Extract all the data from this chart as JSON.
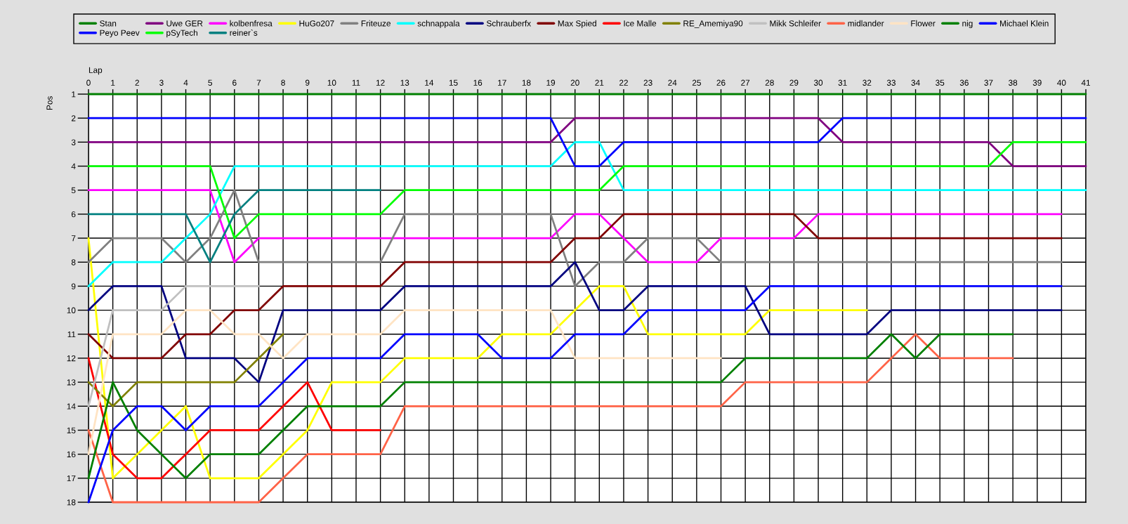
{
  "chart_data": {
    "type": "line",
    "xlabel": "Lap",
    "ylabel": "Pos",
    "grid": true,
    "legend": "top",
    "x": [
      0,
      1,
      2,
      3,
      4,
      5,
      6,
      7,
      8,
      9,
      10,
      11,
      12,
      13,
      14,
      15,
      16,
      17,
      18,
      19,
      20,
      21,
      22,
      23,
      24,
      25,
      26,
      27,
      28,
      29,
      30,
      31,
      32,
      33,
      34,
      35,
      36,
      37,
      38,
      39,
      40,
      41
    ],
    "xlim": [
      0,
      41
    ],
    "xticks": [
      0,
      1,
      2,
      3,
      4,
      5,
      6,
      7,
      8,
      9,
      10,
      11,
      12,
      13,
      14,
      15,
      16,
      17,
      18,
      19,
      20,
      21,
      22,
      23,
      24,
      25,
      26,
      27,
      28,
      29,
      30,
      31,
      32,
      33,
      34,
      35,
      36,
      37,
      38,
      39,
      40,
      41
    ],
    "ylim": [
      18,
      1
    ],
    "yticks": [
      1,
      2,
      3,
      4,
      5,
      6,
      7,
      8,
      9,
      10,
      11,
      12,
      13,
      14,
      15,
      16,
      17,
      18
    ],
    "series": [
      {
        "name": "Stan",
        "color": "#008000",
        "values": [
          1,
          1,
          1,
          1,
          1,
          1,
          1,
          1,
          1,
          1,
          1,
          1,
          1,
          1,
          1,
          1,
          1,
          1,
          1,
          1,
          1,
          1,
          1,
          1,
          1,
          1,
          1,
          1,
          1,
          1,
          1,
          1,
          1,
          1,
          1,
          1,
          1,
          1,
          1,
          1,
          1,
          1
        ]
      },
      {
        "name": "Uwe GER",
        "color": "#800080",
        "values": [
          3,
          3,
          3,
          3,
          3,
          3,
          3,
          3,
          3,
          3,
          3,
          3,
          3,
          3,
          3,
          3,
          3,
          3,
          3,
          3,
          2,
          2,
          2,
          2,
          2,
          2,
          2,
          2,
          2,
          2,
          2,
          3,
          3,
          3,
          3,
          3,
          3,
          3,
          4,
          4,
          4,
          4
        ]
      },
      {
        "name": "kolbenfresa",
        "color": "#ff00ff",
        "values": [
          5,
          5,
          5,
          5,
          5,
          5,
          8,
          7,
          7,
          7,
          7,
          7,
          7,
          7,
          7,
          7,
          7,
          7,
          7,
          7,
          6,
          6,
          7,
          8,
          8,
          8,
          7,
          7,
          7,
          7,
          6,
          6,
          6,
          6,
          6,
          6,
          6,
          6,
          6,
          6,
          6,
          null
        ]
      },
      {
        "name": "HuGo207",
        "color": "#ffff00",
        "values": [
          7,
          17,
          16,
          15,
          14,
          17,
          17,
          17,
          16,
          15,
          13,
          13,
          13,
          12,
          12,
          12,
          12,
          11,
          11,
          11,
          10,
          9,
          9,
          11,
          11,
          11,
          11,
          11,
          10,
          10,
          10,
          10,
          10,
          null,
          null,
          null,
          null,
          null,
          null,
          null,
          null,
          null
        ]
      },
      {
        "name": "Friteuze",
        "color": "#808080",
        "values": [
          8,
          7,
          7,
          7,
          8,
          7,
          5,
          8,
          8,
          8,
          8,
          8,
          8,
          6,
          6,
          6,
          6,
          6,
          6,
          6,
          9,
          8,
          8,
          7,
          7,
          7,
          8,
          8,
          8,
          8,
          8,
          8,
          8,
          8,
          8,
          8,
          8,
          8,
          8,
          8,
          8,
          null
        ]
      },
      {
        "name": "schnappala",
        "color": "#00ffff",
        "values": [
          9,
          8,
          8,
          8,
          7,
          6,
          4,
          4,
          4,
          4,
          4,
          4,
          4,
          4,
          4,
          4,
          4,
          4,
          4,
          4,
          3,
          3,
          5,
          5,
          5,
          5,
          5,
          5,
          5,
          5,
          5,
          5,
          5,
          5,
          5,
          5,
          5,
          5,
          5,
          5,
          5,
          5
        ]
      },
      {
        "name": "Schrauberfx",
        "color": "#000080",
        "values": [
          10,
          9,
          9,
          9,
          12,
          12,
          12,
          13,
          10,
          10,
          10,
          10,
          10,
          9,
          9,
          9,
          9,
          9,
          9,
          9,
          8,
          10,
          10,
          9,
          9,
          9,
          9,
          9,
          11,
          11,
          11,
          11,
          11,
          10,
          10,
          10,
          10,
          10,
          10,
          10,
          10,
          null
        ]
      },
      {
        "name": "Max Spied",
        "color": "#800000",
        "values": [
          11,
          12,
          12,
          12,
          11,
          11,
          10,
          10,
          9,
          9,
          9,
          9,
          9,
          8,
          8,
          8,
          8,
          8,
          8,
          8,
          7,
          7,
          6,
          6,
          6,
          6,
          6,
          6,
          6,
          6,
          7,
          7,
          7,
          7,
          7,
          7,
          7,
          7,
          7,
          7,
          7,
          null
        ]
      },
      {
        "name": "Ice Malle",
        "color": "#ff0000",
        "values": [
          12,
          16,
          17,
          17,
          16,
          15,
          15,
          15,
          14,
          13,
          15,
          15,
          15,
          null,
          null,
          null,
          null,
          null,
          null,
          null,
          null,
          null,
          null,
          null,
          null,
          null,
          null,
          null,
          null,
          null,
          null,
          null,
          null,
          null,
          null,
          null,
          null,
          null,
          null,
          null,
          null,
          null
        ]
      },
      {
        "name": "RE_Amemiya90",
        "color": "#808000",
        "values": [
          13,
          14,
          13,
          13,
          13,
          13,
          13,
          12,
          11,
          null,
          null,
          null,
          null,
          null,
          null,
          null,
          null,
          null,
          null,
          null,
          null,
          null,
          null,
          null,
          null,
          null,
          null,
          null,
          null,
          null,
          null,
          null,
          null,
          null,
          null,
          null,
          null,
          null,
          null,
          null,
          null,
          null
        ]
      },
      {
        "name": "Mikk Schleifer",
        "color": "#c0c0c0",
        "values": [
          14,
          10,
          10,
          10,
          9,
          9,
          9,
          9,
          null,
          null,
          null,
          null,
          null,
          null,
          null,
          null,
          null,
          null,
          null,
          null,
          null,
          null,
          null,
          null,
          null,
          null,
          null,
          null,
          null,
          null,
          null,
          null,
          null,
          null,
          null,
          null,
          null,
          null,
          null,
          null,
          null,
          null
        ]
      },
      {
        "name": "midlander",
        "color": "#ff6347",
        "values": [
          15,
          18,
          18,
          18,
          18,
          18,
          18,
          18,
          17,
          16,
          16,
          16,
          16,
          14,
          14,
          14,
          14,
          14,
          14,
          14,
          14,
          14,
          14,
          14,
          14,
          14,
          14,
          13,
          13,
          13,
          13,
          13,
          13,
          12,
          11,
          12,
          12,
          12,
          12,
          null,
          null,
          null
        ]
      },
      {
        "name": "Flower",
        "color": "#ffe4c4",
        "values": [
          16,
          11,
          11,
          11,
          10,
          10,
          11,
          11,
          12,
          11,
          11,
          11,
          11,
          10,
          10,
          10,
          10,
          10,
          10,
          10,
          12,
          12,
          12,
          12,
          12,
          12,
          12,
          null,
          null,
          null,
          null,
          null,
          null,
          null,
          null,
          null,
          null,
          null,
          null,
          null,
          null,
          null
        ]
      },
      {
        "name": "nig",
        "color": "#008000",
        "values": [
          17,
          13,
          15,
          16,
          17,
          16,
          16,
          16,
          15,
          14,
          14,
          14,
          14,
          13,
          13,
          13,
          13,
          13,
          13,
          13,
          13,
          13,
          13,
          13,
          13,
          13,
          13,
          12,
          12,
          12,
          12,
          12,
          12,
          11,
          12,
          11,
          11,
          11,
          11,
          null,
          null,
          null
        ]
      },
      {
        "name": "Michael Klein",
        "color": "#0000ff",
        "values": [
          18,
          15,
          14,
          14,
          15,
          14,
          14,
          14,
          13,
          12,
          12,
          12,
          12,
          11,
          11,
          11,
          11,
          12,
          12,
          12,
          11,
          11,
          11,
          10,
          10,
          10,
          10,
          10,
          9,
          9,
          9,
          9,
          9,
          9,
          9,
          9,
          9,
          9,
          9,
          9,
          9,
          null
        ]
      },
      {
        "name": "Peyo Peev",
        "color": "#0000ff",
        "values": [
          2,
          2,
          2,
          2,
          2,
          2,
          2,
          2,
          2,
          2,
          2,
          2,
          2,
          2,
          2,
          2,
          2,
          2,
          2,
          2,
          4,
          4,
          3,
          3,
          3,
          3,
          3,
          3,
          3,
          3,
          3,
          2,
          2,
          2,
          2,
          2,
          2,
          2,
          2,
          2,
          2,
          2
        ]
      },
      {
        "name": "pSyTech",
        "color": "#00ff00",
        "values": [
          4,
          4,
          4,
          4,
          4,
          4,
          7,
          6,
          6,
          6,
          6,
          6,
          6,
          5,
          5,
          5,
          5,
          5,
          5,
          5,
          5,
          5,
          4,
          4,
          4,
          4,
          4,
          4,
          4,
          4,
          4,
          4,
          4,
          4,
          4,
          4,
          4,
          4,
          3,
          3,
          3,
          3
        ]
      },
      {
        "name": "reiner`s",
        "color": "#008080",
        "values": [
          6,
          6,
          6,
          6,
          6,
          8,
          6,
          5,
          5,
          5,
          5,
          5,
          5,
          null,
          null,
          null,
          null,
          null,
          null,
          null,
          null,
          null,
          null,
          null,
          null,
          null,
          null,
          null,
          null,
          null,
          null,
          null,
          null,
          null,
          null,
          null,
          null,
          null,
          null,
          null,
          null,
          null
        ]
      }
    ]
  }
}
